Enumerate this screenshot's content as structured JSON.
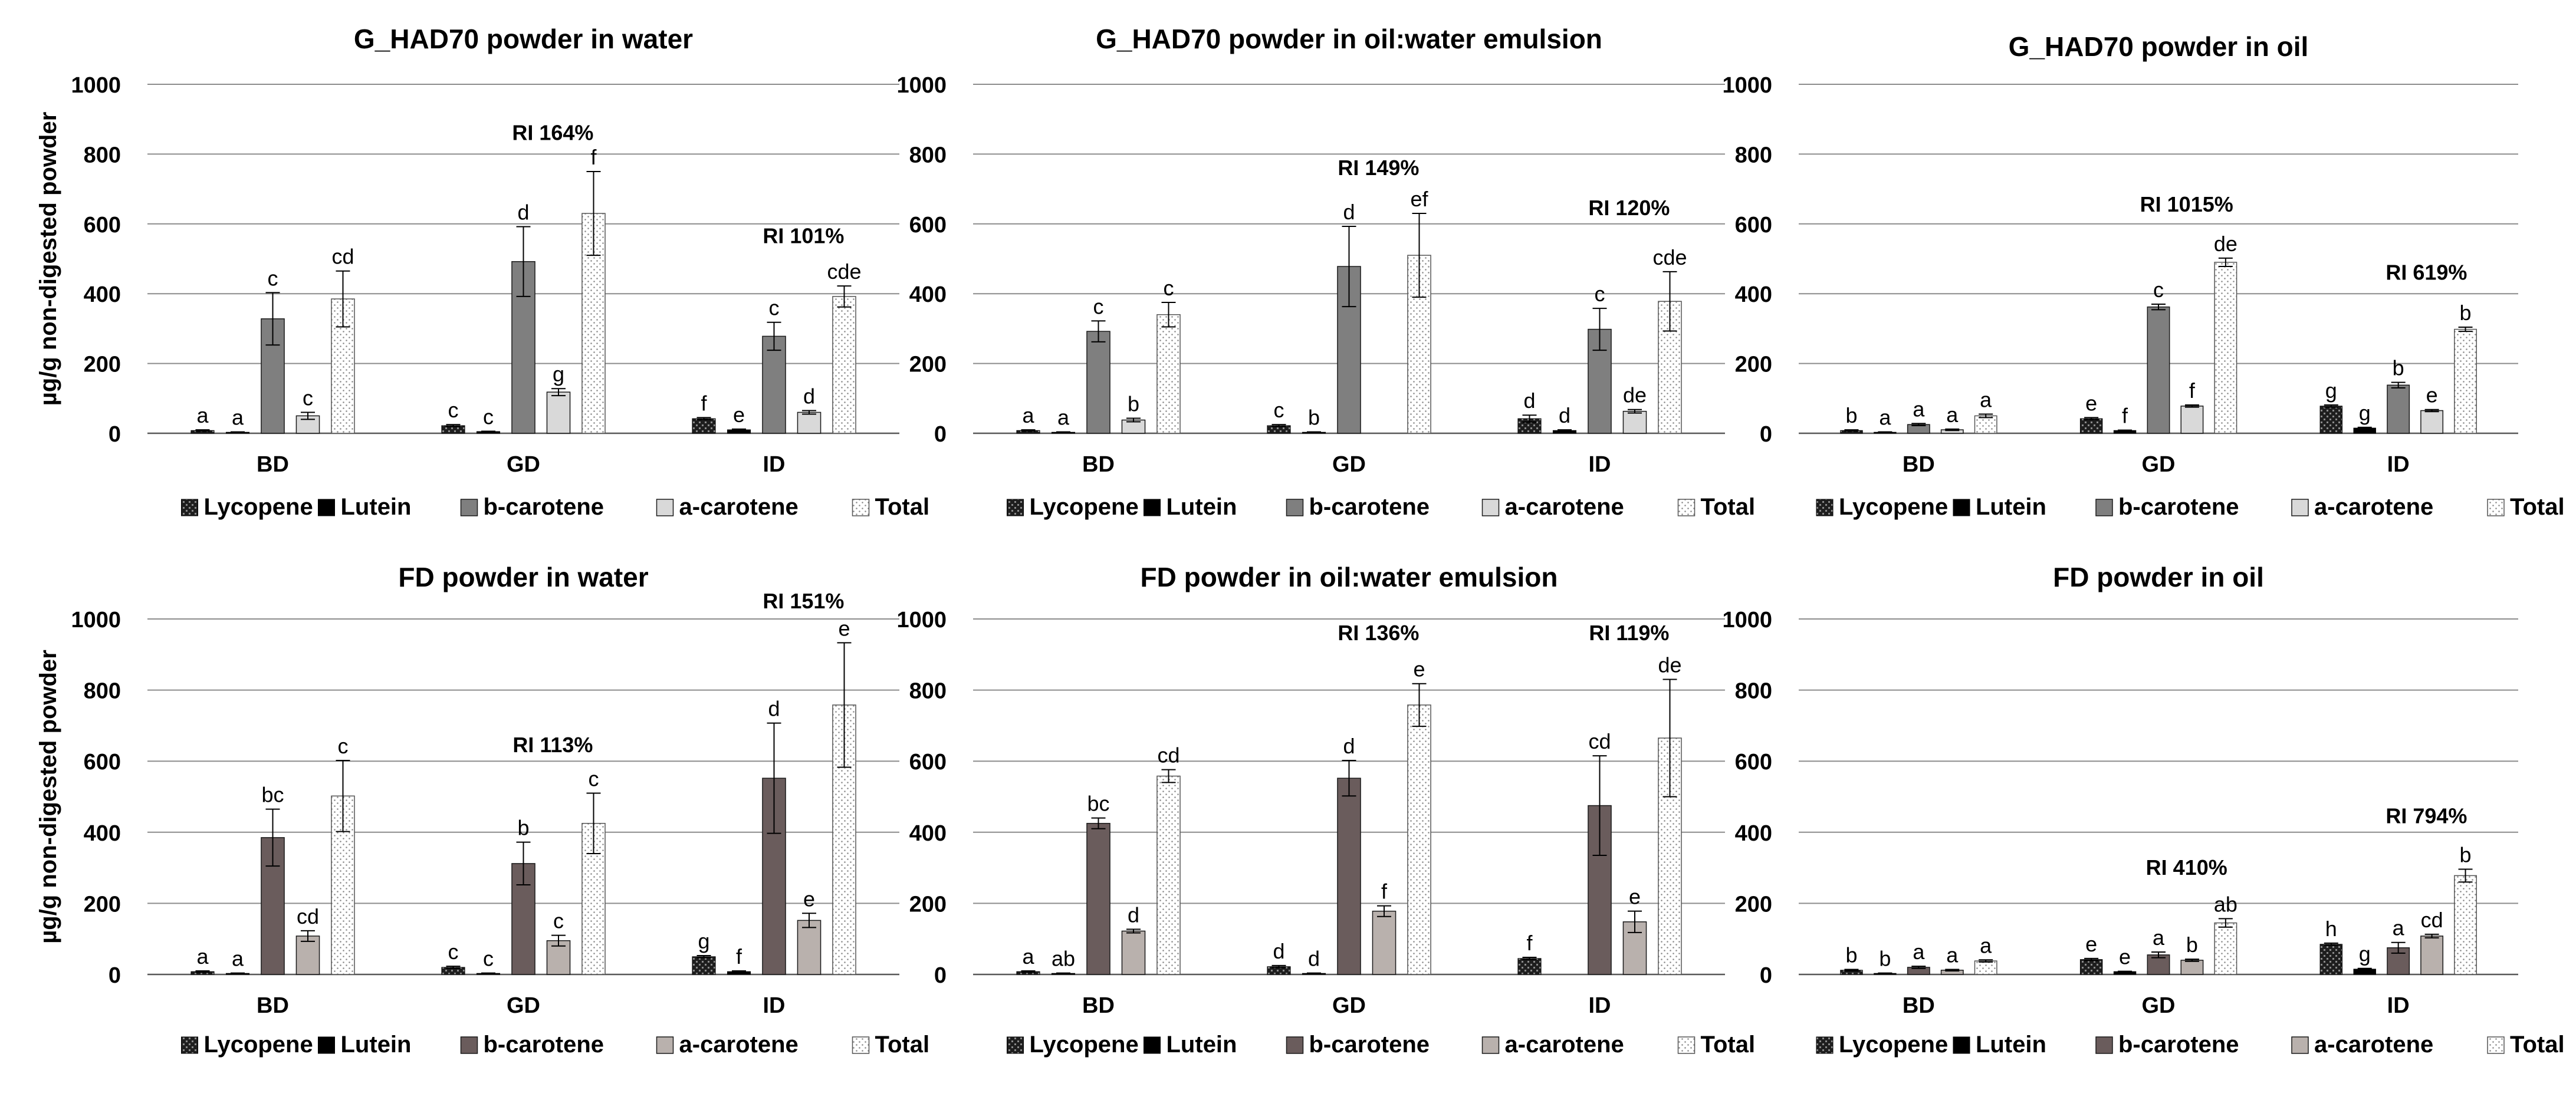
{
  "legend_labels": [
    "Lycopene",
    "Lutein",
    "b-carotene",
    "a-carotene",
    "Total"
  ],
  "y_axis_label": "µg/g non-digested powder",
  "colors": {
    "gridline": "#8c8c8c",
    "axis": "#595959",
    "text": "#000000"
  },
  "chart_data": [
    {
      "type": "bar",
      "title": "G_HAD70 powder in water",
      "ylabel": "µg/g non-digested powder",
      "ylim": [
        0,
        1000
      ],
      "yticks": [
        0,
        200,
        400,
        600,
        800,
        1000
      ],
      "categories": [
        "BD",
        "GD",
        "ID"
      ],
      "legend_position": "bottom",
      "series": [
        {
          "name": "Lycopene",
          "values": [
            8,
            22,
            42
          ],
          "errors": [
            2,
            3,
            3
          ],
          "letters": [
            "a",
            "c",
            "f"
          ]
        },
        {
          "name": "Lutein",
          "values": [
            3,
            5,
            10
          ],
          "errors": [
            1,
            1,
            2
          ],
          "letters": [
            "a",
            "c",
            "e"
          ]
        },
        {
          "name": "b-carotene",
          "values": [
            328,
            492,
            278
          ],
          "errors": [
            75,
            100,
            40
          ],
          "letters": [
            "c",
            "d",
            "c"
          ]
        },
        {
          "name": "a-carotene",
          "values": [
            50,
            118,
            60
          ],
          "errors": [
            10,
            10,
            5
          ],
          "letters": [
            "c",
            "g",
            "d"
          ]
        },
        {
          "name": "Total",
          "values": [
            385,
            630,
            392
          ],
          "errors": [
            80,
            120,
            30
          ],
          "letters": [
            "cd",
            "f",
            "cde"
          ]
        }
      ],
      "annotations": [
        {
          "text": "RI 164%",
          "category": "GD",
          "value": 840
        },
        {
          "text": "RI 101%",
          "category": "ID",
          "value": 545
        }
      ]
    },
    {
      "type": "bar",
      "title": "G_HAD70 powder in oil:water emulsion",
      "ylim": [
        0,
        1000
      ],
      "yticks": [
        0,
        200,
        400,
        600,
        800,
        1000
      ],
      "categories": [
        "BD",
        "GD",
        "ID"
      ],
      "legend_position": "bottom",
      "series": [
        {
          "name": "Lycopene",
          "values": [
            8,
            22,
            42
          ],
          "errors": [
            2,
            3,
            10
          ],
          "letters": [
            "a",
            "c",
            "d"
          ]
        },
        {
          "name": "Lutein",
          "values": [
            3,
            3,
            8
          ],
          "errors": [
            1,
            1,
            2
          ],
          "letters": [
            "a",
            "b",
            "d"
          ]
        },
        {
          "name": "b-carotene",
          "values": [
            292,
            478,
            298
          ],
          "errors": [
            30,
            115,
            60
          ],
          "letters": [
            "c",
            "d",
            "c"
          ]
        },
        {
          "name": "a-carotene",
          "values": [
            38,
            0,
            63
          ],
          "errors": [
            5,
            0,
            5
          ],
          "letters": [
            "b",
            "",
            "de"
          ]
        },
        {
          "name": "Total",
          "values": [
            340,
            510,
            378
          ],
          "errors": [
            35,
            120,
            85
          ],
          "letters": [
            "c",
            "ef",
            "cde"
          ]
        }
      ],
      "annotations": [
        {
          "text": "RI 149%",
          "category": "GD",
          "value": 740
        },
        {
          "text": "RI 120%",
          "category": "ID",
          "value": 625
        }
      ]
    },
    {
      "type": "bar",
      "title": "G_HAD70 powder in oil",
      "ylim": [
        0,
        1000
      ],
      "yticks": [
        0,
        200,
        400,
        600,
        800,
        1000
      ],
      "categories": [
        "BD",
        "GD",
        "ID"
      ],
      "legend_position": "bottom",
      "series": [
        {
          "name": "Lycopene",
          "values": [
            8,
            42,
            78
          ],
          "errors": [
            2,
            3,
            3
          ],
          "letters": [
            "b",
            "e",
            "g"
          ]
        },
        {
          "name": "Lutein",
          "values": [
            3,
            8,
            15
          ],
          "errors": [
            1,
            1,
            2
          ],
          "letters": [
            "a",
            "f",
            "g"
          ]
        },
        {
          "name": "b-carotene",
          "values": [
            25,
            362,
            138
          ],
          "errors": [
            3,
            8,
            8
          ],
          "letters": [
            "a",
            "c",
            "b"
          ]
        },
        {
          "name": "a-carotene",
          "values": [
            10,
            78,
            65
          ],
          "errors": [
            2,
            3,
            3
          ],
          "letters": [
            "a",
            "f",
            "e"
          ]
        },
        {
          "name": "Total",
          "values": [
            50,
            490,
            298
          ],
          "errors": [
            5,
            12,
            6
          ],
          "letters": [
            "a",
            "de",
            "b"
          ]
        }
      ],
      "annotations": [
        {
          "text": "RI 1015%",
          "category": "GD",
          "value": 635
        },
        {
          "text": "RI 619%",
          "category": "ID",
          "value": 440
        }
      ]
    },
    {
      "type": "bar",
      "title": "FD powder in water",
      "ylabel": "µg/g non-digested powder",
      "ylim": [
        0,
        1000
      ],
      "yticks": [
        0,
        200,
        400,
        600,
        800,
        1000
      ],
      "categories": [
        "BD",
        "GD",
        "ID"
      ],
      "legend_position": "bottom",
      "series": [
        {
          "name": "Lycopene",
          "values": [
            8,
            20,
            50
          ],
          "errors": [
            2,
            3,
            3
          ],
          "letters": [
            "a",
            "c",
            "g"
          ]
        },
        {
          "name": "Lutein",
          "values": [
            3,
            3,
            8
          ],
          "errors": [
            1,
            1,
            2
          ],
          "letters": [
            "a",
            "c",
            "f"
          ]
        },
        {
          "name": "b-carotene",
          "values": [
            385,
            312,
            552
          ],
          "errors": [
            80,
            60,
            155
          ],
          "letters": [
            "bc",
            "b",
            "d"
          ]
        },
        {
          "name": "a-carotene",
          "values": [
            108,
            95,
            152
          ],
          "errors": [
            15,
            15,
            20
          ],
          "letters": [
            "cd",
            "c",
            "e"
          ]
        },
        {
          "name": "Total",
          "values": [
            502,
            425,
            758
          ],
          "errors": [
            100,
            85,
            175
          ],
          "letters": [
            "c",
            "c",
            "e"
          ]
        }
      ],
      "annotations": [
        {
          "text": "RI 113%",
          "category": "GD",
          "value": 625
        },
        {
          "text": "RI 151%",
          "category": "ID",
          "value": 1030
        }
      ]
    },
    {
      "type": "bar",
      "title": "FD powder in oil:water emulsion",
      "ylim": [
        0,
        1000
      ],
      "yticks": [
        0,
        200,
        400,
        600,
        800,
        1000
      ],
      "categories": [
        "BD",
        "GD",
        "ID"
      ],
      "legend_position": "bottom",
      "series": [
        {
          "name": "Lycopene",
          "values": [
            8,
            22,
            45
          ],
          "errors": [
            2,
            3,
            3
          ],
          "letters": [
            "a",
            "d",
            "f"
          ]
        },
        {
          "name": "Lutein",
          "values": [
            3,
            3,
            0
          ],
          "errors": [
            1,
            1,
            0
          ],
          "letters": [
            "ab",
            "d",
            ""
          ]
        },
        {
          "name": "b-carotene",
          "values": [
            425,
            552,
            475
          ],
          "errors": [
            15,
            50,
            140
          ],
          "letters": [
            "bc",
            "d",
            "cd"
          ]
        },
        {
          "name": "a-carotene",
          "values": [
            122,
            178,
            148
          ],
          "errors": [
            5,
            15,
            30
          ],
          "letters": [
            "d",
            "f",
            "e"
          ]
        },
        {
          "name": "Total",
          "values": [
            558,
            758,
            665
          ],
          "errors": [
            18,
            60,
            165
          ],
          "letters": [
            "cd",
            "e",
            "de"
          ]
        }
      ],
      "annotations": [
        {
          "text": "RI 136%",
          "category": "GD",
          "value": 940
        },
        {
          "text": "RI 119%",
          "category": "ID",
          "value": 940
        }
      ]
    },
    {
      "type": "bar",
      "title": "FD powder in oil",
      "ylim": [
        0,
        1000
      ],
      "yticks": [
        0,
        200,
        400,
        600,
        800,
        1000
      ],
      "categories": [
        "BD",
        "GD",
        "ID"
      ],
      "legend_position": "bottom",
      "series": [
        {
          "name": "Lycopene",
          "values": [
            12,
            42,
            85
          ],
          "errors": [
            2,
            3,
            3
          ],
          "letters": [
            "b",
            "e",
            "h"
          ]
        },
        {
          "name": "Lutein",
          "values": [
            3,
            8,
            15
          ],
          "errors": [
            1,
            1,
            2
          ],
          "letters": [
            "b",
            "e",
            "g"
          ]
        },
        {
          "name": "b-carotene",
          "values": [
            20,
            55,
            75
          ],
          "errors": [
            3,
            8,
            15
          ],
          "letters": [
            "a",
            "a",
            "a"
          ]
        },
        {
          "name": "a-carotene",
          "values": [
            12,
            40,
            108
          ],
          "errors": [
            2,
            3,
            5
          ],
          "letters": [
            "a",
            "b",
            "cd"
          ]
        },
        {
          "name": "Total",
          "values": [
            38,
            145,
            278
          ],
          "errors": [
            3,
            12,
            18
          ],
          "letters": [
            "a",
            "ab",
            "b"
          ]
        }
      ],
      "annotations": [
        {
          "text": "RI 410%",
          "category": "GD",
          "value": 280
        },
        {
          "text": "RI 794%",
          "category": "ID",
          "value": 425
        }
      ]
    }
  ]
}
